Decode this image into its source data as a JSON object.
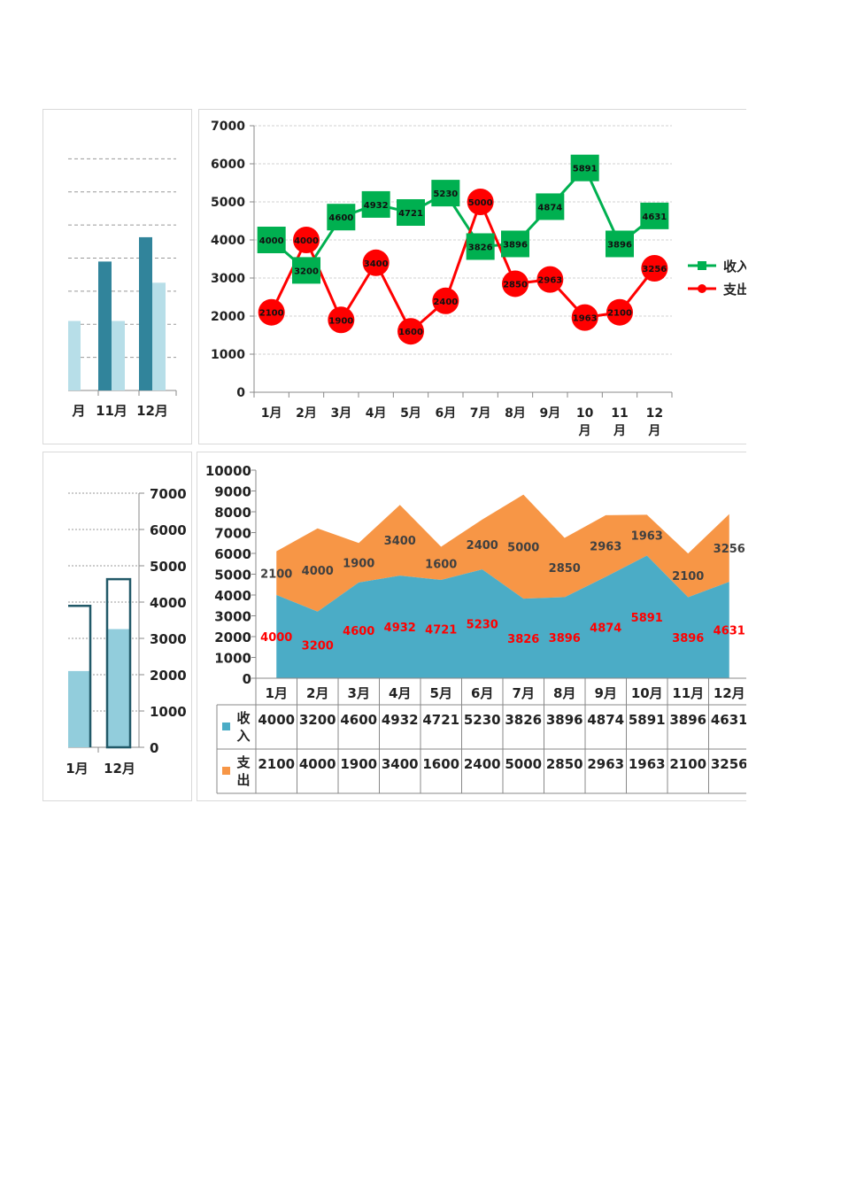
{
  "months": [
    "1月",
    "2月",
    "3月",
    "4月",
    "5月",
    "6月",
    "7月",
    "8月",
    "9月",
    "10月",
    "11月",
    "12月"
  ],
  "series_names": {
    "income": "收入",
    "expense": "支出"
  },
  "colors": {
    "income_line": "#00b050",
    "expense_line": "#ff0000",
    "income_area": "#4bacc6",
    "expense_area": "#f79646",
    "income_label": "#ff0000",
    "expense_label": "#404040",
    "bar_dark": "#31849b",
    "bar_light": "#b7dee8",
    "col_fill": "#92cddc",
    "col_outline": "#215968"
  },
  "chart_data": [
    {
      "type": "bar",
      "title": "",
      "categories_visible": [
        "月",
        "11月",
        "12月"
      ],
      "series": [
        {
          "name": "收入",
          "values": [
            3896,
            4631
          ]
        },
        {
          "name": "支出",
          "values": [
            2100,
            3256
          ]
        }
      ],
      "note": "partially visible grouped bar chart, left panel top"
    },
    {
      "type": "line",
      "categories": [
        "1月",
        "2月",
        "3月",
        "4月",
        "5月",
        "6月",
        "7月",
        "8月",
        "9月",
        "10月",
        "11月",
        "12月"
      ],
      "ylim": [
        0,
        7000
      ],
      "yticks": [
        "0",
        "1000",
        "2000",
        "3000",
        "4000",
        "5000",
        "6000",
        "7000"
      ],
      "legend": "right",
      "series": [
        {
          "name": "收入",
          "values": [
            4000,
            3200,
            4600,
            4932,
            4721,
            5230,
            3826,
            3896,
            4874,
            5891,
            3896,
            4631
          ]
        },
        {
          "name": "支出",
          "values": [
            2100,
            4000,
            1900,
            3400,
            1600,
            2400,
            5000,
            2850,
            2963,
            1963,
            2100,
            3256
          ]
        }
      ]
    },
    {
      "type": "bar",
      "categories_visible": [
        "1月",
        "12月"
      ],
      "ylim": [
        0,
        7000
      ],
      "yticks": [
        "0",
        "1000",
        "2000",
        "3000",
        "4000",
        "5000",
        "6000",
        "7000"
      ],
      "series": [
        {
          "name": "收入",
          "values": [
            3896,
            4631
          ]
        },
        {
          "name": "支出",
          "values": [
            2100,
            3256
          ]
        }
      ],
      "note": "partially visible overlapping column chart, left panel bottom"
    },
    {
      "type": "area",
      "stacked": true,
      "categories": [
        "1月",
        "2月",
        "3月",
        "4月",
        "5月",
        "6月",
        "7月",
        "8月",
        "9月",
        "10月",
        "11月",
        "12月"
      ],
      "ylim": [
        0,
        10000
      ],
      "yticks": [
        "0",
        "1000",
        "2000",
        "3000",
        "4000",
        "5000",
        "6000",
        "7000",
        "8000",
        "9000",
        "10000"
      ],
      "series": [
        {
          "name": "收入",
          "values": [
            4000,
            3200,
            4600,
            4932,
            4721,
            5230,
            3826,
            3896,
            4874,
            5891,
            3896,
            4631
          ]
        },
        {
          "name": "支出",
          "values": [
            2100,
            4000,
            1900,
            3400,
            1600,
            2400,
            5000,
            2850,
            2963,
            1963,
            2100,
            3256
          ]
        }
      ],
      "data_table": true
    }
  ]
}
